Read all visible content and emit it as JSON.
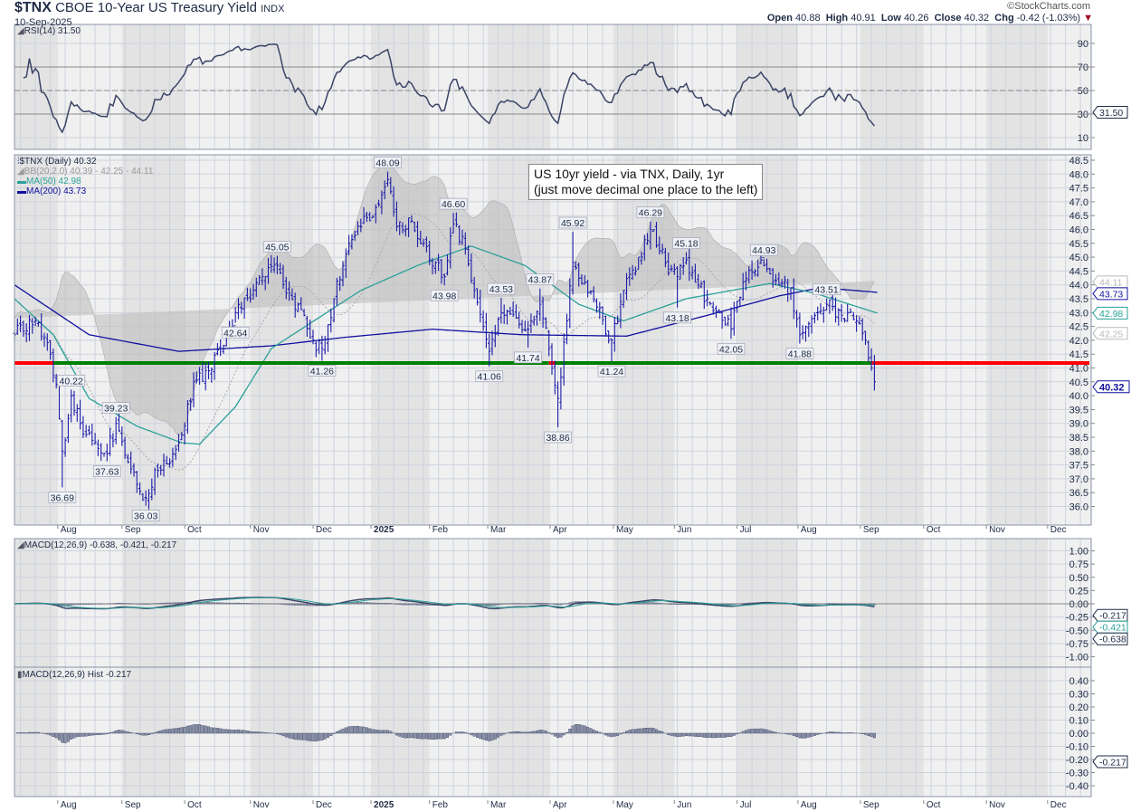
{
  "header": {
    "symbol": "$TNX",
    "name": "CBOE 10-Year US Treasury Yield",
    "exchange": "INDX",
    "date": "10-Sep-2025",
    "copyright": "©StockCharts.com",
    "open_label": "Open",
    "open": "40.88",
    "high_label": "High",
    "high": "40.91",
    "low_label": "Low",
    "low": "40.26",
    "close_label": "Close",
    "close": "40.32",
    "chg_label": "Chg",
    "chg": "-0.42 (-1.03%)",
    "chg_arrow": "▼"
  },
  "annotation": {
    "line1": "US 10yr yield - via TNX, Daily, 1yr",
    "line2": "(just move decimal one place to the left)"
  },
  "legends": {
    "rsi": "RSI(14) 31.50",
    "price": "$TNX (Daily) 40.32",
    "bb": "BB(20,2.0) 40.39 - 42.25 - 44.11",
    "ma50": "MA(50) 42.98",
    "ma200": "MA(200) 43.73",
    "macd": "MACD(12,26,9) -0.638, -0.421, -0.217",
    "hist": "MACD(12,26,9) Hist -0.217"
  },
  "colors": {
    "bars": "#1c1ca8",
    "ma50": "#2aa198",
    "ma200": "#1010a0",
    "bb": "#b8b8b8",
    "macd": "#3a4466",
    "signal": "#2aa198",
    "hist": "#8a93a8",
    "support_above": "#008000",
    "support_below": "#ff0000"
  },
  "chart_data": {
    "type": "line",
    "title": "$TNX CBOE 10-Year US Treasury Yield (Daily)",
    "x_unit": "trading day index (0 = early Jul 2024, 289 = 10-Sep-2025)",
    "x_range": [
      0,
      360
    ],
    "month_ticks": [
      {
        "label": "Aug",
        "day": 14.5
      },
      {
        "label": "Sep",
        "day": 36
      },
      {
        "label": "Oct",
        "day": 57
      },
      {
        "label": "Nov",
        "day": 79
      },
      {
        "label": "Dec",
        "day": 100
      },
      {
        "label": "2025",
        "day": 119.4
      },
      {
        "label": "Feb",
        "day": 139
      },
      {
        "label": "Mar",
        "day": 158.5
      },
      {
        "label": "Apr",
        "day": 179.4
      },
      {
        "label": "May",
        "day": 200.6
      },
      {
        "label": "Jun",
        "day": 221
      },
      {
        "label": "Jul",
        "day": 242
      },
      {
        "label": "Aug",
        "day": 262.4
      },
      {
        "label": "Sep",
        "day": 283.3
      },
      {
        "label": "Oct",
        "day": 304.5
      },
      {
        "label": "Nov",
        "day": 325.5
      },
      {
        "label": "Dec",
        "day": 346
      }
    ],
    "price": {
      "ylim": [
        35.6,
        48.8
      ],
      "ticks": [
        "48.5",
        "48.0",
        "47.5",
        "47.0",
        "46.5",
        "46.0",
        "45.5",
        "45.0",
        "44.5",
        "44.0",
        "43.5",
        "43.0",
        "42.5",
        "42.0",
        "41.5",
        "41.0",
        "40.5",
        "40.0",
        "39.5",
        "39.0",
        "38.5",
        "38.0",
        "37.5",
        "37.0",
        "36.5",
        "36.0"
      ],
      "close_waypoints": [
        [
          0,
          42.2
        ],
        [
          7,
          42.7
        ],
        [
          12,
          41.5
        ],
        [
          14,
          40.4
        ],
        [
          16,
          38.0
        ],
        [
          19,
          40.0
        ],
        [
          24,
          38.6
        ],
        [
          28,
          38.1
        ],
        [
          31,
          37.9
        ],
        [
          34,
          39.0
        ],
        [
          38,
          37.6
        ],
        [
          41,
          36.8
        ],
        [
          44,
          36.3
        ],
        [
          48,
          37.3
        ],
        [
          53,
          37.9
        ],
        [
          57,
          38.9
        ],
        [
          60,
          40.5
        ],
        [
          65,
          40.9
        ],
        [
          69,
          41.7
        ],
        [
          74,
          43.0
        ],
        [
          78,
          43.5
        ],
        [
          83,
          44.3
        ],
        [
          88,
          44.7
        ],
        [
          92,
          43.7
        ],
        [
          97,
          42.9
        ],
        [
          100,
          42.0
        ],
        [
          103,
          41.7
        ],
        [
          107,
          43.5
        ],
        [
          112,
          45.5
        ],
        [
          116,
          46.1
        ],
        [
          121,
          46.8
        ],
        [
          125,
          47.8
        ],
        [
          128,
          46.1
        ],
        [
          133,
          46.3
        ],
        [
          136,
          45.5
        ],
        [
          141,
          44.8
        ],
        [
          144,
          44.3
        ],
        [
          147,
          46.2
        ],
        [
          151,
          45.3
        ],
        [
          154,
          43.8
        ],
        [
          157,
          42.5
        ],
        [
          159,
          41.6
        ],
        [
          163,
          43.0
        ],
        [
          168,
          42.8
        ],
        [
          172,
          42.4
        ],
        [
          176,
          43.3
        ],
        [
          179,
          41.7
        ],
        [
          182,
          39.9
        ],
        [
          185,
          42.7
        ],
        [
          187,
          44.8
        ],
        [
          191,
          44.1
        ],
        [
          195,
          43.2
        ],
        [
          200,
          42.0
        ],
        [
          204,
          43.8
        ],
        [
          209,
          45.0
        ],
        [
          213,
          46.0
        ],
        [
          218,
          44.8
        ],
        [
          222,
          44.3
        ],
        [
          225,
          44.9
        ],
        [
          228,
          44.1
        ],
        [
          232,
          43.5
        ],
        [
          236,
          43.0
        ],
        [
          240,
          42.4
        ],
        [
          244,
          44.1
        ],
        [
          248,
          44.5
        ],
        [
          251,
          44.7
        ],
        [
          256,
          44.0
        ],
        [
          260,
          43.9
        ],
        [
          263,
          42.2
        ],
        [
          266,
          42.6
        ],
        [
          269,
          43.0
        ],
        [
          272,
          43.3
        ],
        [
          277,
          42.9
        ],
        [
          282,
          42.7
        ],
        [
          285,
          42.0
        ],
        [
          287,
          41.0
        ],
        [
          288,
          40.5
        ],
        [
          289,
          40.32
        ]
      ],
      "last_bar": {
        "open": 40.88,
        "high": 40.91,
        "low": 40.26,
        "close": 40.32
      },
      "ma50_waypoints": [
        [
          0,
          43.5
        ],
        [
          13,
          42.2
        ],
        [
          25,
          39.9
        ],
        [
          41,
          38.9
        ],
        [
          56,
          38.3
        ],
        [
          62,
          38.25
        ],
        [
          74,
          39.6
        ],
        [
          86,
          41.7
        ],
        [
          116,
          43.8
        ],
        [
          135,
          44.7
        ],
        [
          153,
          45.4
        ],
        [
          171,
          44.7
        ],
        [
          189,
          43.3
        ],
        [
          204,
          42.7
        ],
        [
          225,
          43.5
        ],
        [
          253,
          44.05
        ],
        [
          268,
          43.7
        ],
        [
          289,
          42.98
        ]
      ],
      "ma200_waypoints": [
        [
          0,
          44.0
        ],
        [
          25,
          42.2
        ],
        [
          55,
          41.6
        ],
        [
          86,
          41.8
        ],
        [
          110,
          42.1
        ],
        [
          140,
          42.4
        ],
        [
          170,
          42.2
        ],
        [
          205,
          42.15
        ],
        [
          232,
          42.9
        ],
        [
          256,
          43.6
        ],
        [
          270,
          43.9
        ],
        [
          289,
          43.73
        ]
      ],
      "support_level": 41.18,
      "support_segments": [
        {
          "from": 0,
          "to": 13,
          "color": "below"
        },
        {
          "from": 13,
          "to": 179,
          "color": "above"
        },
        {
          "from": 179,
          "to": 181,
          "color": "below"
        },
        {
          "from": 181,
          "to": 287,
          "color": "above"
        },
        {
          "from": 287,
          "to": 360,
          "color": "below"
        }
      ],
      "annotations": [
        {
          "day": 16,
          "value": "36.69",
          "pos": "below"
        },
        {
          "day": 19,
          "value": "40.22",
          "pos": "above"
        },
        {
          "day": 31,
          "value": "37.63",
          "pos": "below"
        },
        {
          "day": 34,
          "value": "39.23",
          "pos": "above"
        },
        {
          "day": 44,
          "value": "36.03",
          "pos": "below"
        },
        {
          "day": 74,
          "value": "42.64",
          "pos": "below"
        },
        {
          "day": 88,
          "value": "45.05",
          "pos": "above"
        },
        {
          "day": 103,
          "value": "41.26",
          "pos": "below"
        },
        {
          "day": 125,
          "value": "48.09",
          "pos": "above"
        },
        {
          "day": 144,
          "value": "43.98",
          "pos": "below"
        },
        {
          "day": 147,
          "value": "46.60",
          "pos": "above"
        },
        {
          "day": 159,
          "value": "41.06",
          "pos": "below"
        },
        {
          "day": 163,
          "value": "43.53",
          "pos": "above"
        },
        {
          "day": 172,
          "value": "41.74",
          "pos": "below"
        },
        {
          "day": 176,
          "value": "43.87",
          "pos": "above"
        },
        {
          "day": 182,
          "value": "38.86",
          "pos": "below"
        },
        {
          "day": 187,
          "value": "45.92",
          "pos": "above"
        },
        {
          "day": 200,
          "value": "41.24",
          "pos": "below"
        },
        {
          "day": 213,
          "value": "46.29",
          "pos": "above"
        },
        {
          "day": 225,
          "value": "45.18",
          "pos": "above"
        },
        {
          "day": 222,
          "value": "43.18",
          "pos": "below"
        },
        {
          "day": 240,
          "value": "42.05",
          "pos": "below"
        },
        {
          "day": 251,
          "value": "44.93",
          "pos": "above"
        },
        {
          "day": 263,
          "value": "41.88",
          "pos": "below"
        },
        {
          "day": 272,
          "value": "43.51",
          "pos": "above"
        }
      ],
      "axis_tags": [
        {
          "value": "44.11",
          "at": 44.11,
          "color": "bb"
        },
        {
          "value": "43.73",
          "at": 43.73,
          "color": "ma200"
        },
        {
          "value": "42.98",
          "at": 42.98,
          "color": "ma50"
        },
        {
          "value": "42.25",
          "at": 42.25,
          "color": "bb"
        },
        {
          "value": "40.32",
          "at": 40.32,
          "color": "ma200",
          "bold": true
        }
      ]
    },
    "rsi": {
      "period": 14,
      "last": "31.50",
      "ticks": [
        "90",
        "70",
        "50",
        "30",
        "10"
      ],
      "ylim": [
        0,
        100
      ],
      "levels": [
        70,
        50,
        30
      ]
    },
    "macd": {
      "params": [
        12,
        26,
        9
      ],
      "macd": "-0.638",
      "signal": "-0.421",
      "hist": "-0.217",
      "ticks": [
        "1.00",
        "0.75",
        "0.50",
        "0.25",
        "0.00",
        "-0.25",
        "-0.50",
        "-0.75",
        "-1.00"
      ],
      "ylim": [
        -1.1,
        1.1
      ]
    },
    "hist": {
      "last": "-0.217",
      "ticks": [
        "0.40",
        "0.30",
        "0.20",
        "0.10",
        "0.00",
        "-0.10",
        "-0.20",
        "-0.30",
        "-0.40"
      ],
      "ylim": [
        -0.45,
        0.45
      ]
    }
  }
}
